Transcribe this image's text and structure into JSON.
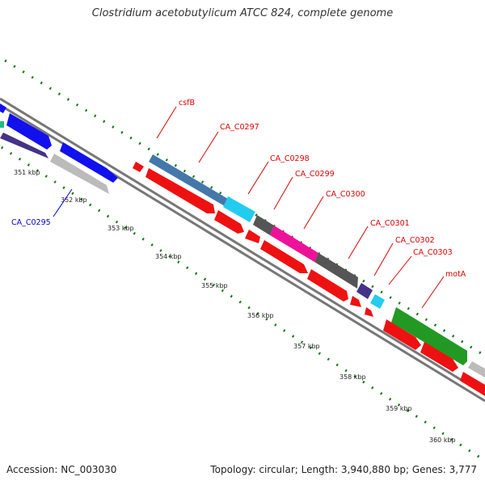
{
  "title": "Clostridium acetobutylicum ATCC 824, complete genome",
  "accession": "Accession: NC_003030",
  "summary": "Topology: circular; Length: 3,940,880 bp; Genes: 3,777",
  "ticks": [
    "351 kbp",
    "352 kbp",
    "353 kbp",
    "354 kbp",
    "355 kbp",
    "356 kbp",
    "357 kbp",
    "358 kbp",
    "359 kbp",
    "360 kbp"
  ],
  "gene_labels": [
    {
      "text": "csfB",
      "color": "#dd0000"
    },
    {
      "text": "CA_C0297",
      "color": "#dd0000"
    },
    {
      "text": "CA_C0298",
      "color": "#dd0000"
    },
    {
      "text": "CA_C0299",
      "color": "#dd0000"
    },
    {
      "text": "CA_C0300",
      "color": "#dd0000"
    },
    {
      "text": "CA_C0301",
      "color": "#dd0000"
    },
    {
      "text": "CA_C0302",
      "color": "#dd0000"
    },
    {
      "text": "CA_C0303",
      "color": "#dd0000"
    },
    {
      "text": "motA",
      "color": "#dd0000"
    },
    {
      "text": "CA_C0295",
      "color": "#0000cc"
    }
  ],
  "colors": {
    "red": "#ee1111",
    "blue": "#1111ee",
    "navy": "#443388",
    "steel": "#4477aa",
    "cyan": "#22ccee",
    "gray": "#555555",
    "magenta": "#ee1199",
    "green": "#229922",
    "light_gray": "#bbbbbb",
    "backbone": "#777777",
    "gc_dots": "#117711"
  }
}
